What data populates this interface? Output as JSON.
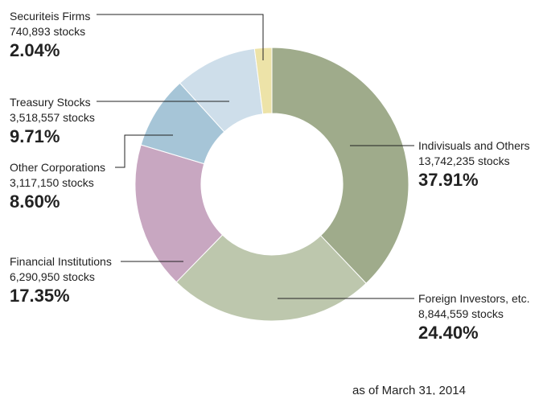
{
  "chart_data": {
    "type": "donut",
    "categories": [
      "Indivisuals and Others",
      "Foreign Investors, etc.",
      "Financial Institutions",
      "Other Corporations",
      "Treasury Stocks",
      "Securiteis Firms"
    ],
    "values": [
      37.91,
      24.4,
      17.35,
      8.6,
      9.71,
      2.04
    ],
    "value_labels": [
      "37.91%",
      "24.40%",
      "17.35%",
      "8.60%",
      "9.71%",
      "2.04%"
    ],
    "shares": [
      13742235,
      8844559,
      6290950,
      3117150,
      3518557,
      740893
    ],
    "share_labels": [
      "13,742,235 stocks",
      "8,844,559 stocks",
      "6,290,950 stocks",
      "3,117,150 stocks",
      "3,518,557 stocks",
      "740,893 stocks"
    ],
    "colors": [
      "#9fab8b",
      "#bdc7ad",
      "#c8a7c1",
      "#a6c5d7",
      "#cedeea",
      "#ede3a8"
    ],
    "note": "as of March 31, 2014"
  }
}
